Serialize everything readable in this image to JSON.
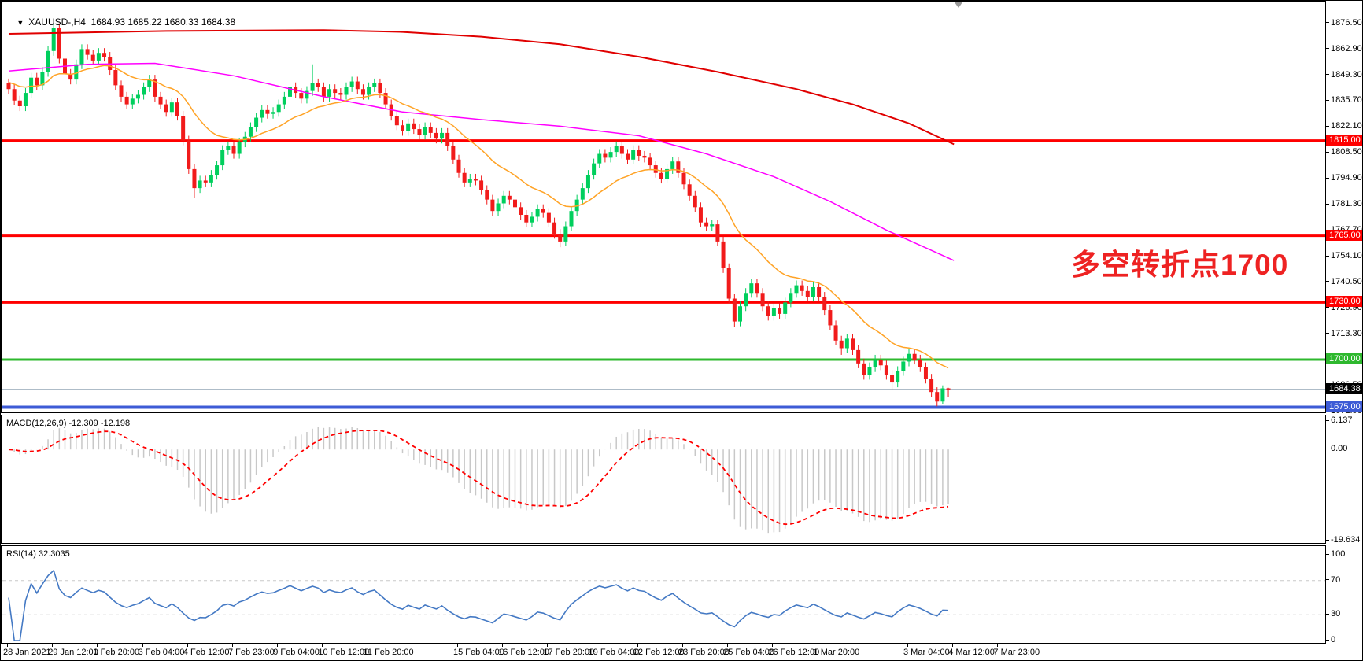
{
  "window_title": {
    "dropdown_icon": "▼",
    "symbol": "XAUUSD-,H4",
    "ohlc": "1684.93 1685.22 1680.33 1684.38"
  },
  "annotation": {
    "text": "多空转折点1700",
    "color": "#ee2222"
  },
  "price_axis": {
    "tick_labels": [
      "1876.50",
      "1862.90",
      "1849.30",
      "1835.70",
      "1822.10",
      "1808.50",
      "1794.90",
      "1781.30",
      "1767.70",
      "1754.10",
      "1740.50",
      "1726.90",
      "1713.30",
      "1699.70",
      "1686.50",
      "1672.90"
    ],
    "badges": [
      {
        "text": "1815.00",
        "value": 1815,
        "bg": "#ff0000"
      },
      {
        "text": "1765.00",
        "value": 1765,
        "bg": "#ff0000"
      },
      {
        "text": "1730.00",
        "value": 1730,
        "bg": "#ff0000"
      },
      {
        "text": "1700.00",
        "value": 1700,
        "bg": "#2eb82e"
      },
      {
        "text": "1684.38",
        "value": 1684.38,
        "bg": "#000000"
      },
      {
        "text": "1675.00",
        "value": 1675,
        "bg": "#3d5bd6"
      }
    ]
  },
  "hlines": [
    {
      "value": 1815,
      "color": "#ff0000",
      "w": 3
    },
    {
      "value": 1765,
      "color": "#ff0000",
      "w": 3
    },
    {
      "value": 1730,
      "color": "#ff0000",
      "w": 3
    },
    {
      "value": 1700,
      "color": "#2eb82e",
      "w": 3
    },
    {
      "value": 1675,
      "color": "#3d5bd6",
      "w": 4
    },
    {
      "value": 1684.38,
      "color": "#7d93a8",
      "w": 1
    }
  ],
  "time_axis": {
    "labels": [
      "28 Jan 2021",
      "29 Jan 12:00",
      "1 Feb 20:00",
      "3 Feb 04:00",
      "4 Feb 12:00",
      "7 Feb 23:00",
      "9 Feb 04:00",
      "10 Feb 12:00",
      "11 Feb 20:00",
      "15 Feb 04:00",
      "16 Feb 12:00",
      "17 Feb 20:00",
      "19 Feb 04:00",
      "22 Feb 12:00",
      "23 Feb 20:00",
      "25 Feb 04:00",
      "26 Feb 12:00",
      "1 Mar 20:00",
      "3 Mar 04:00",
      "4 Mar 12:00",
      "7 Mar 23:00"
    ],
    "bars": [
      0,
      8,
      16,
      24,
      32,
      40,
      48,
      56,
      64,
      80,
      88,
      96,
      104,
      112,
      120,
      128,
      136,
      144,
      160,
      168,
      176
    ]
  },
  "chart_data": {
    "type": "candlestick",
    "symbol": "XAUUSD-",
    "timeframe": "H4",
    "price_ylim": [
      1671,
      1887
    ],
    "colors": {
      "bull": "#00cf5d",
      "bear": "#f11b1b",
      "ma_red": "#e00000",
      "ma_magenta": "#ff00ff",
      "ma_orange": "#ffa326",
      "macd_hist": "#c8c8c8",
      "macd_signal": "#ff0000",
      "rsi_line": "#4479c4",
      "rsi_level_dash": "#c8c8c8"
    },
    "candles": [
      [
        1845,
        1847.5,
        1839.5,
        1842
      ],
      [
        1842,
        1844.5,
        1833.5,
        1836
      ],
      [
        1836,
        1838.5,
        1830.5,
        1833
      ],
      [
        1833,
        1842.5,
        1830.5,
        1840
      ],
      [
        1840,
        1850.5,
        1837.5,
        1848
      ],
      [
        1848,
        1850.5,
        1841.5,
        1844
      ],
      [
        1844,
        1853.5,
        1841.5,
        1851
      ],
      [
        1851,
        1864.5,
        1848.5,
        1862
      ],
      [
        1862,
        1876.5,
        1859.5,
        1874
      ],
      [
        1874,
        1876.5,
        1855.5,
        1858
      ],
      [
        1858,
        1860.5,
        1847.5,
        1850
      ],
      [
        1850,
        1852.5,
        1844.5,
        1847
      ],
      [
        1847,
        1857.5,
        1844.5,
        1855
      ],
      [
        1855,
        1865.5,
        1852.5,
        1863
      ],
      [
        1863,
        1865.5,
        1857.5,
        1860
      ],
      [
        1860,
        1862.5,
        1854.5,
        1857
      ],
      [
        1857,
        1863.5,
        1854.5,
        1861
      ],
      [
        1861,
        1863.5,
        1856.5,
        1859
      ],
      [
        1859,
        1861.5,
        1849.5,
        1852
      ],
      [
        1852,
        1854.5,
        1841.5,
        1844
      ],
      [
        1844,
        1846.5,
        1835.5,
        1838
      ],
      [
        1838,
        1840.5,
        1831.5,
        1834
      ],
      [
        1834,
        1839.5,
        1831.5,
        1837
      ],
      [
        1837,
        1841.5,
        1834.5,
        1839
      ],
      [
        1839,
        1845.5,
        1836.5,
        1843
      ],
      [
        1843,
        1849.5,
        1840.5,
        1847
      ],
      [
        1847,
        1849.5,
        1835.5,
        1838
      ],
      [
        1838,
        1840.5,
        1831.5,
        1834
      ],
      [
        1834,
        1836.5,
        1827.5,
        1830
      ],
      [
        1830,
        1837.5,
        1827.5,
        1835
      ],
      [
        1835,
        1837.5,
        1825.5,
        1828
      ],
      [
        1828,
        1830.5,
        1812.5,
        1815
      ],
      [
        1815,
        1817.5,
        1797.5,
        1800
      ],
      [
        1800,
        1802.5,
        1785,
        1790
      ],
      [
        1790,
        1796.5,
        1787.5,
        1794
      ],
      [
        1794,
        1796.5,
        1790.5,
        1793
      ],
      [
        1793,
        1799.5,
        1790.5,
        1797
      ],
      [
        1797,
        1804.5,
        1794.5,
        1802
      ],
      [
        1802,
        1812.5,
        1799.5,
        1810
      ],
      [
        1810,
        1814.5,
        1807.5,
        1812
      ],
      [
        1812,
        1814.5,
        1805.5,
        1808
      ],
      [
        1808,
        1816.5,
        1805.5,
        1814
      ],
      [
        1814,
        1819.5,
        1811.5,
        1817
      ],
      [
        1817,
        1824.5,
        1814.5,
        1822
      ],
      [
        1822,
        1829.5,
        1819.5,
        1827
      ],
      [
        1827,
        1833.5,
        1824.5,
        1831
      ],
      [
        1831,
        1833.5,
        1826.5,
        1829
      ],
      [
        1829,
        1832.5,
        1826.5,
        1830
      ],
      [
        1830,
        1836.5,
        1827.5,
        1834
      ],
      [
        1834,
        1840.5,
        1831.5,
        1838
      ],
      [
        1838,
        1845.5,
        1835.5,
        1843
      ],
      [
        1843,
        1845.5,
        1837.5,
        1840
      ],
      [
        1840,
        1842.5,
        1834.5,
        1837
      ],
      [
        1837,
        1843.5,
        1834.5,
        1841
      ],
      [
        1841,
        1855,
        1838.5,
        1845
      ],
      [
        1845,
        1847.5,
        1840.5,
        1843
      ],
      [
        1843,
        1845.5,
        1835.5,
        1838
      ],
      [
        1838,
        1844.5,
        1835.5,
        1842
      ],
      [
        1842,
        1844.5,
        1837.5,
        1840
      ],
      [
        1840,
        1842.5,
        1836.5,
        1839
      ],
      [
        1839,
        1845.5,
        1836.5,
        1843
      ],
      [
        1843,
        1848.5,
        1840.5,
        1846
      ],
      [
        1846,
        1848.5,
        1839.5,
        1842
      ],
      [
        1842,
        1844.5,
        1836.5,
        1839
      ],
      [
        1839,
        1845.5,
        1836.5,
        1843
      ],
      [
        1843,
        1847.5,
        1840.5,
        1845
      ],
      [
        1845,
        1847.5,
        1837.5,
        1840
      ],
      [
        1840,
        1842.5,
        1831.5,
        1834
      ],
      [
        1834,
        1836.5,
        1825.5,
        1828
      ],
      [
        1828,
        1830.5,
        1820.5,
        1823
      ],
      [
        1823,
        1825.5,
        1817.5,
        1820
      ],
      [
        1820,
        1826.5,
        1817.5,
        1824
      ],
      [
        1824,
        1826.5,
        1818.5,
        1821
      ],
      [
        1821,
        1823.5,
        1815.5,
        1818
      ],
      [
        1818,
        1824.5,
        1815.5,
        1822
      ],
      [
        1822,
        1824.5,
        1816.5,
        1819
      ],
      [
        1819,
        1821.5,
        1813.5,
        1816
      ],
      [
        1816,
        1821.5,
        1813.5,
        1819
      ],
      [
        1819,
        1821.5,
        1809.5,
        1812
      ],
      [
        1812,
        1814.5,
        1802.5,
        1805
      ],
      [
        1805,
        1807.5,
        1795.5,
        1798
      ],
      [
        1798,
        1800.5,
        1790.5,
        1793
      ],
      [
        1793,
        1797.5,
        1790.5,
        1795
      ],
      [
        1795,
        1797.5,
        1791.5,
        1794
      ],
      [
        1794,
        1796.5,
        1786.5,
        1789
      ],
      [
        1789,
        1791.5,
        1781.5,
        1784
      ],
      [
        1784,
        1786.5,
        1775.5,
        1778
      ],
      [
        1778,
        1784.5,
        1775.5,
        1782
      ],
      [
        1782,
        1788.5,
        1779.5,
        1786
      ],
      [
        1786,
        1788.5,
        1781.5,
        1784
      ],
      [
        1784,
        1786.5,
        1777.5,
        1780
      ],
      [
        1780,
        1782.5,
        1773.5,
        1776
      ],
      [
        1776,
        1778.5,
        1769.5,
        1772
      ],
      [
        1772,
        1777.5,
        1769.5,
        1775
      ],
      [
        1775,
        1781.5,
        1772.5,
        1779
      ],
      [
        1779,
        1781.5,
        1774.5,
        1777
      ],
      [
        1777,
        1779.5,
        1769.5,
        1772
      ],
      [
        1772,
        1774.5,
        1763.5,
        1766
      ],
      [
        1766,
        1768.5,
        1759,
        1762
      ],
      [
        1762,
        1772.5,
        1759.5,
        1770
      ],
      [
        1770,
        1780.5,
        1767.5,
        1778
      ],
      [
        1778,
        1786.5,
        1775.5,
        1784
      ],
      [
        1784,
        1792.5,
        1781.5,
        1790
      ],
      [
        1790,
        1799.5,
        1787.5,
        1797
      ],
      [
        1797,
        1805.5,
        1794.5,
        1803
      ],
      [
        1803,
        1810.5,
        1800.5,
        1808
      ],
      [
        1808,
        1810.5,
        1803.5,
        1806
      ],
      [
        1806,
        1811.5,
        1803.5,
        1809
      ],
      [
        1809,
        1814.5,
        1806.5,
        1812
      ],
      [
        1812,
        1814.5,
        1805.5,
        1808
      ],
      [
        1808,
        1810.5,
        1802.5,
        1805
      ],
      [
        1805,
        1812.5,
        1802.5,
        1810
      ],
      [
        1810,
        1812.5,
        1804.5,
        1807
      ],
      [
        1807,
        1809.5,
        1803.5,
        1806
      ],
      [
        1806,
        1808.5,
        1799.5,
        1802
      ],
      [
        1802,
        1804.5,
        1795.5,
        1798
      ],
      [
        1798,
        1800.5,
        1792.5,
        1795
      ],
      [
        1795,
        1802.5,
        1792.5,
        1800
      ],
      [
        1800,
        1806.5,
        1797.5,
        1804
      ],
      [
        1804,
        1806.5,
        1795.5,
        1798
      ],
      [
        1798,
        1800.5,
        1789.5,
        1792
      ],
      [
        1792,
        1794.5,
        1783.5,
        1786
      ],
      [
        1786,
        1788.5,
        1777.5,
        1780
      ],
      [
        1780,
        1782.5,
        1769.5,
        1772
      ],
      [
        1772,
        1774.5,
        1767.5,
        1770
      ],
      [
        1770,
        1773.5,
        1767.5,
        1771
      ],
      [
        1771,
        1773.5,
        1759.5,
        1762
      ],
      [
        1762,
        1764.5,
        1745.5,
        1748
      ],
      [
        1748,
        1750.5,
        1729.5,
        1732
      ],
      [
        1732,
        1734.5,
        1717,
        1720
      ],
      [
        1720,
        1730.5,
        1717.5,
        1728
      ],
      [
        1728,
        1737.5,
        1725.5,
        1735
      ],
      [
        1735,
        1742.5,
        1732.5,
        1740
      ],
      [
        1740,
        1742.5,
        1732.5,
        1735
      ],
      [
        1735,
        1737.5,
        1725.5,
        1728
      ],
      [
        1728,
        1730.5,
        1720.5,
        1723
      ],
      [
        1723,
        1729.5,
        1720.5,
        1727
      ],
      [
        1727,
        1729.5,
        1721.5,
        1724
      ],
      [
        1724,
        1732.5,
        1721.5,
        1730
      ],
      [
        1730,
        1737.5,
        1727.5,
        1735
      ],
      [
        1735,
        1741.5,
        1732.5,
        1739
      ],
      [
        1739,
        1741.5,
        1733.5,
        1736
      ],
      [
        1736,
        1738.5,
        1730.5,
        1733
      ],
      [
        1733,
        1740.5,
        1730.5,
        1738
      ],
      [
        1738,
        1740.5,
        1730.5,
        1733
      ],
      [
        1733,
        1735.5,
        1723.5,
        1726
      ],
      [
        1726,
        1728.5,
        1715.5,
        1718
      ],
      [
        1718,
        1720.5,
        1707.5,
        1710
      ],
      [
        1710,
        1712.5,
        1702.5,
        1706
      ],
      [
        1706,
        1713.5,
        1703.5,
        1711
      ],
      [
        1711,
        1713.5,
        1702.5,
        1705
      ],
      [
        1705,
        1707.5,
        1695.5,
        1698
      ],
      [
        1698,
        1700.5,
        1689.5,
        1692
      ],
      [
        1692,
        1698.5,
        1689.5,
        1696
      ],
      [
        1696,
        1702.5,
        1693.5,
        1700
      ],
      [
        1700,
        1702.5,
        1694.5,
        1697
      ],
      [
        1697,
        1699.5,
        1689.5,
        1692
      ],
      [
        1692,
        1694.5,
        1684.5,
        1688
      ],
      [
        1688,
        1696.5,
        1685.5,
        1694
      ],
      [
        1694,
        1701.5,
        1691.5,
        1699
      ],
      [
        1699,
        1705.5,
        1696.5,
        1703
      ],
      [
        1703,
        1705.5,
        1697.5,
        1700
      ],
      [
        1700,
        1702.5,
        1693.5,
        1696
      ],
      [
        1696,
        1698.5,
        1687.5,
        1690
      ],
      [
        1690,
        1692.5,
        1680.5,
        1683
      ],
      [
        1683,
        1685.5,
        1675.5,
        1678
      ],
      [
        1678,
        1686.5,
        1676.5,
        1684.93
      ],
      [
        1684.93,
        1685.22,
        1680.33,
        1684.38
      ]
    ],
    "ma_red": [
      [
        0,
        1871
      ],
      [
        28,
        1872.5
      ],
      [
        56,
        1873
      ],
      [
        70,
        1872
      ],
      [
        84,
        1869.5
      ],
      [
        98,
        1865.5
      ],
      [
        112,
        1859
      ],
      [
        126,
        1851
      ],
      [
        140,
        1842
      ],
      [
        150,
        1834
      ],
      [
        160,
        1824
      ],
      [
        168,
        1813
      ]
    ],
    "ma_magenta": [
      [
        0,
        1851.5
      ],
      [
        14,
        1855
      ],
      [
        26,
        1855.5
      ],
      [
        40,
        1849
      ],
      [
        56,
        1838
      ],
      [
        70,
        1830
      ],
      [
        84,
        1826
      ],
      [
        98,
        1822.5
      ],
      [
        112,
        1817.5
      ],
      [
        124,
        1808
      ],
      [
        136,
        1796
      ],
      [
        146,
        1783
      ],
      [
        156,
        1768
      ],
      [
        168,
        1752
      ]
    ],
    "ma_orange_period": 18,
    "macd": {
      "label": "MACD(12,26,9) -12.309 -12.198",
      "fast": 12,
      "slow": 26,
      "signal_period": 9,
      "axis_max": 6.137,
      "axis_min": -19.634,
      "ticks": [
        "6.137",
        "0.00",
        "-19.634"
      ],
      "tick_values": [
        6.137,
        0,
        -19.634
      ]
    },
    "rsi": {
      "label": "RSI(14) 32.3035",
      "period": 14,
      "ticks": [
        "100",
        "70",
        "30",
        "0"
      ],
      "tick_values": [
        100,
        70,
        30,
        0
      ],
      "levels": [
        70,
        30
      ]
    }
  }
}
